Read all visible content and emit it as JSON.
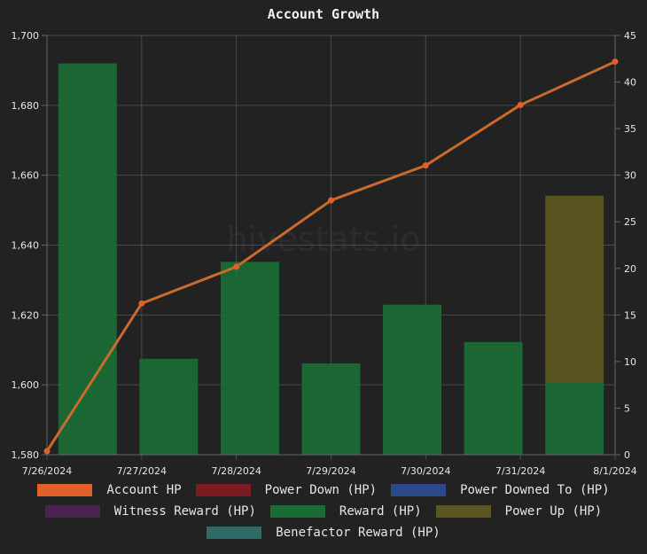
{
  "chart_data": {
    "type": "bar",
    "title": "Account Growth",
    "watermark": "hivestats.io",
    "categories": [
      "7/26/2024",
      "7/27/2024",
      "7/28/2024",
      "7/29/2024",
      "7/30/2024",
      "7/31/2024",
      "8/1/2024"
    ],
    "y_left": {
      "min": 1580,
      "max": 1700,
      "ticks": [
        "1,580",
        "1,600",
        "1,620",
        "1,640",
        "1,660",
        "1,680",
        "1,700"
      ]
    },
    "y_right": {
      "min": 0,
      "max": 45,
      "ticks": [
        "0",
        "5",
        "10",
        "15",
        "20",
        "25",
        "30",
        "35",
        "40",
        "45"
      ]
    },
    "grid": true,
    "legend_position": "bottom",
    "series": [
      {
        "name": "Account HP",
        "type": "line",
        "axis": "left",
        "color": "#e0622a",
        "line_color": "#c96a2e",
        "values": [
          1581,
          1623.3,
          1633.8,
          1652.8,
          1662.8,
          1680.1,
          1692.5
        ]
      },
      {
        "name": "Power Down (HP)",
        "type": "bar",
        "axis": "right",
        "color": "#7a1c22",
        "values": [
          0,
          0,
          0,
          0,
          0,
          0,
          0
        ]
      },
      {
        "name": "Power Downed To (HP)",
        "type": "bar",
        "axis": "right",
        "color": "#2a4a8a",
        "values": [
          0,
          0,
          0,
          0,
          0,
          0,
          0
        ]
      },
      {
        "name": "Witness Reward (HP)",
        "type": "bar",
        "axis": "right",
        "color": "#4a2350",
        "values": [
          0,
          0,
          0,
          0,
          0,
          0,
          0
        ]
      },
      {
        "name": "Reward (HP)",
        "type": "bar",
        "axis": "right",
        "color": "#1b6b35",
        "values": [
          42,
          10.3,
          20.7,
          9.8,
          16.1,
          12.1,
          7.8
        ]
      },
      {
        "name": "Power Up (HP)",
        "type": "bar",
        "axis": "right",
        "color": "#5c5522",
        "values": [
          0,
          0,
          0,
          0,
          0,
          0,
          20
        ]
      },
      {
        "name": "Benefactor Reward (HP)",
        "type": "bar",
        "axis": "right",
        "color": "#2f6b66",
        "values": [
          0,
          0,
          0,
          0,
          0,
          0,
          0
        ]
      }
    ],
    "legend_rows": [
      [
        "Account HP",
        "Power Down (HP)",
        "Power Downed To (HP)"
      ],
      [
        "Witness Reward (HP)",
        "Reward (HP)",
        "Power Up (HP)"
      ],
      [
        "Benefactor Reward (HP)"
      ]
    ]
  }
}
